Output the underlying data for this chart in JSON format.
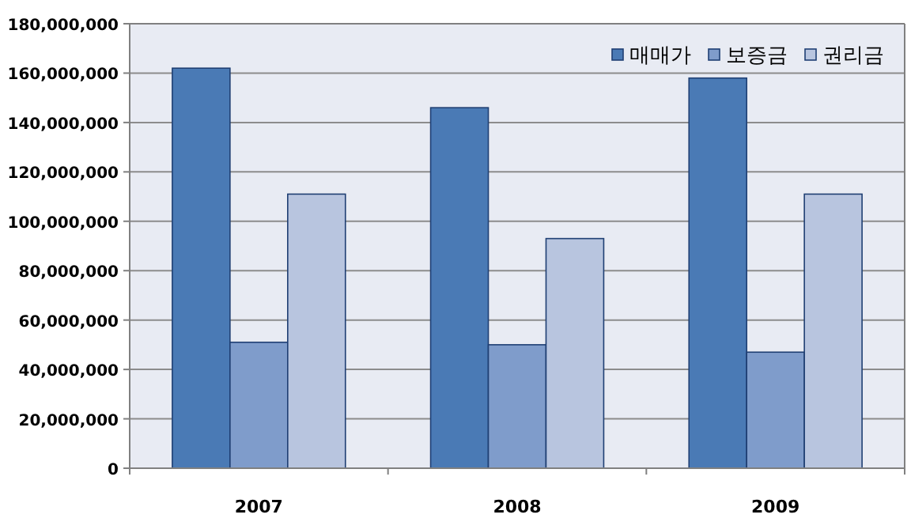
{
  "chart_data": {
    "type": "bar",
    "categories": [
      "2007",
      "2008",
      "2009"
    ],
    "series": [
      {
        "name": "매매가",
        "color": "#4a7ab5",
        "values": [
          162000000,
          146000000,
          158000000
        ]
      },
      {
        "name": "보증금",
        "color": "#7f9ccb",
        "values": [
          51000000,
          50000000,
          47000000
        ]
      },
      {
        "name": "권리금",
        "color": "#b8c5df",
        "values": [
          111000000,
          93000000,
          111000000
        ]
      }
    ],
    "ylim": [
      0,
      180000000
    ],
    "yticks": [
      0,
      {
        "value": 20000000,
        "label": "20,000,000"
      },
      {
        "value": 40000000,
        "label": "40,000,000"
      },
      {
        "value": 60000000,
        "label": "60,000,000"
      },
      {
        "value": 80000000,
        "label": "80,000,000"
      },
      {
        "value": 100000000,
        "label": "100,000,000"
      },
      {
        "value": 120000000,
        "label": "120,000,000"
      },
      {
        "value": 140000000,
        "label": "140,000,000"
      },
      {
        "value": 160000000,
        "label": "160,000,000"
      },
      {
        "value": 180000000,
        "label": "180,000,000"
      }
    ],
    "grid": "y",
    "legend": "top right"
  }
}
